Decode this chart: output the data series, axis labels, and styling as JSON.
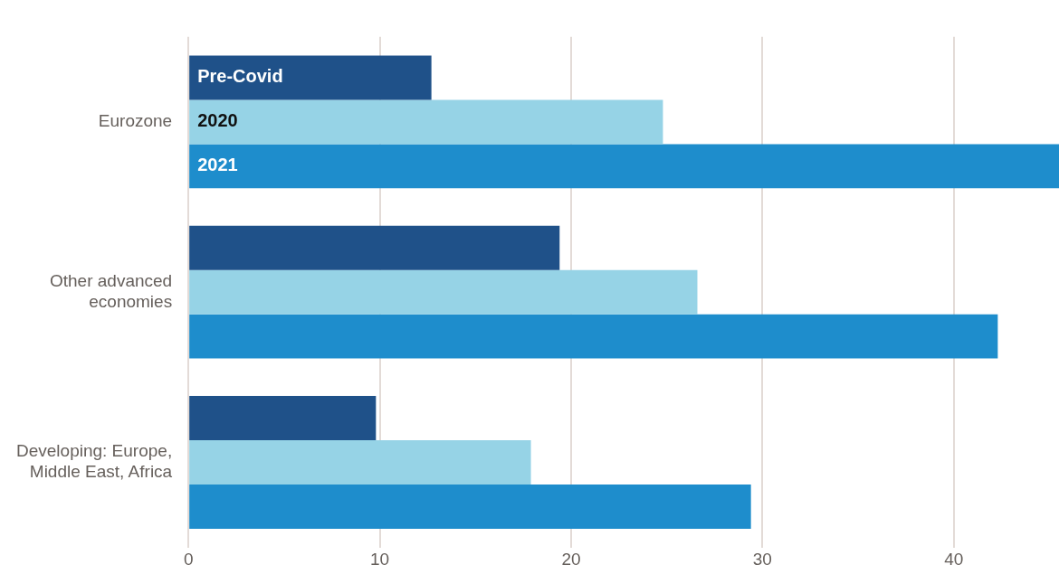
{
  "chart_data": {
    "type": "bar",
    "orientation": "horizontal",
    "categories": [
      "Eurozone",
      "Other advanced economies",
      "Developing: Europe, Middle East, Africa"
    ],
    "series": [
      {
        "name": "Pre-Covid",
        "color": "#1f5189",
        "values": [
          12.7,
          19.4,
          9.8
        ]
      },
      {
        "name": "2020",
        "color": "#96d3e6",
        "values": [
          24.8,
          26.6,
          17.9
        ]
      },
      {
        "name": "2021",
        "color": "#1e8dcc",
        "values": [
          45.5,
          42.3,
          29.4
        ]
      }
    ],
    "xlim": [
      0,
      45.5
    ],
    "xticks": [
      0,
      10,
      20,
      30,
      40
    ],
    "grid": "x",
    "legend": false
  }
}
